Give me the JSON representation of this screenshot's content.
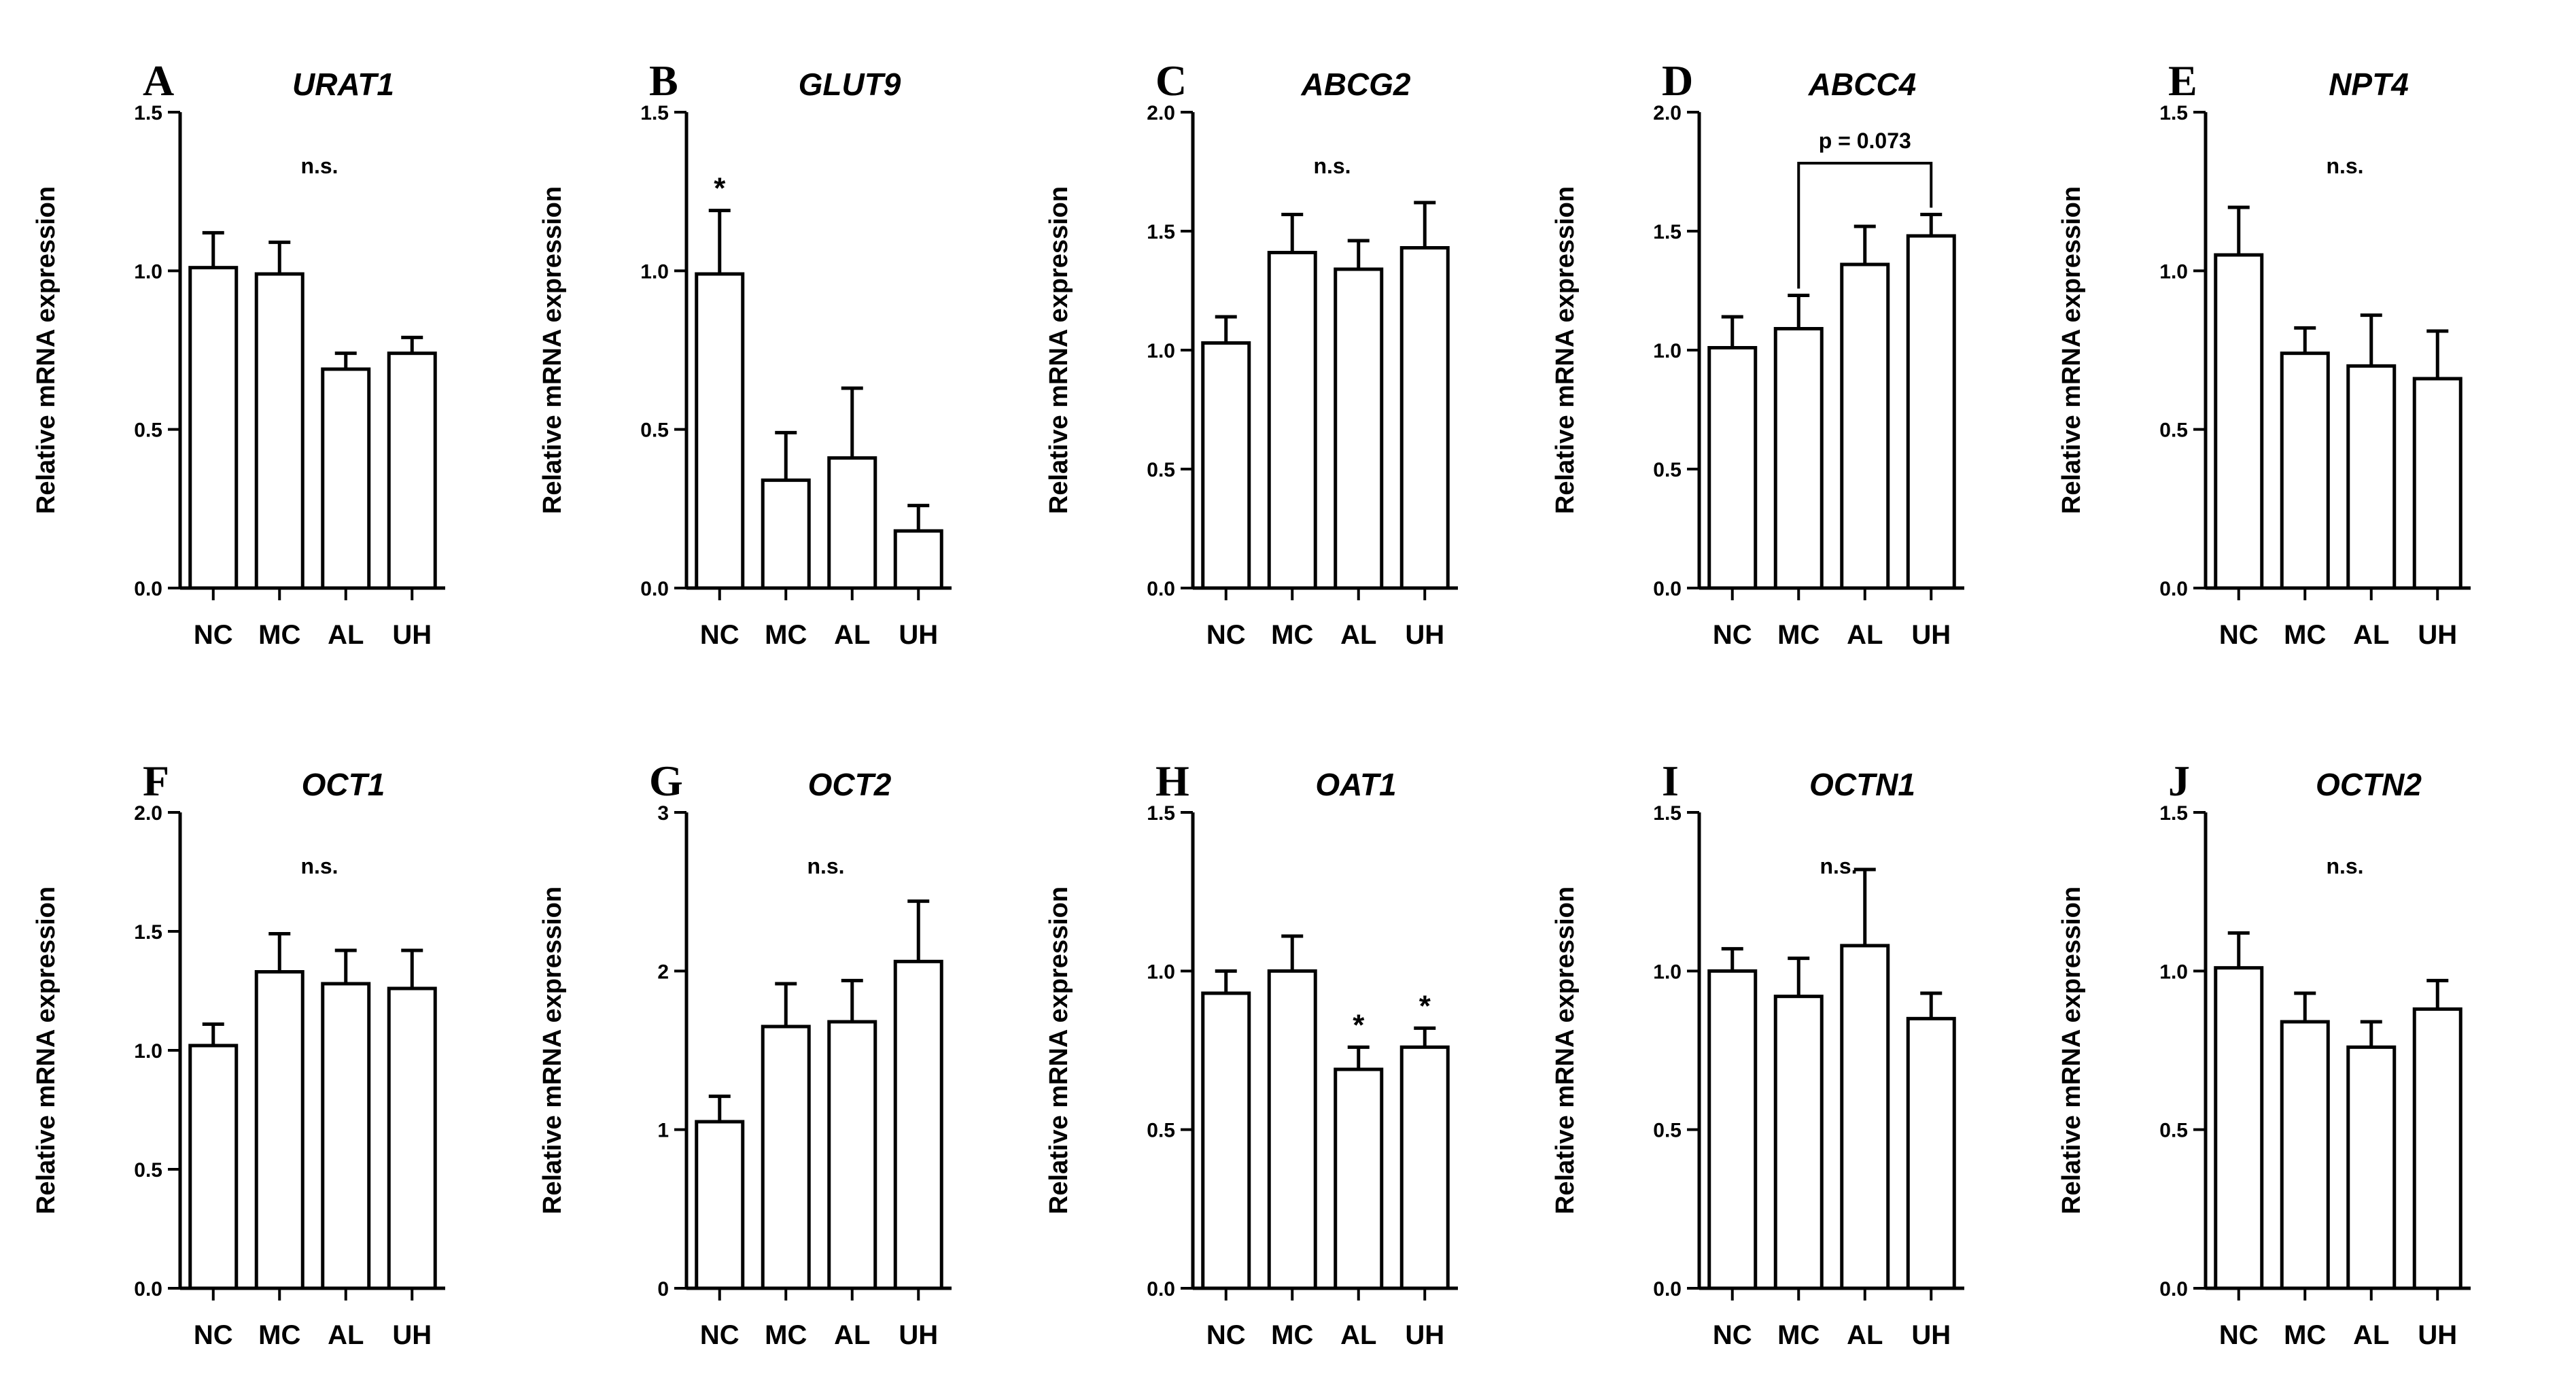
{
  "chart_data": [
    {
      "type": "bar",
      "panel": "A",
      "title": "URAT1",
      "ylabel": "Relative mRNA expression",
      "categories": [
        "NC",
        "MC",
        "AL",
        "UH"
      ],
      "values": [
        1.01,
        0.99,
        0.69,
        0.74
      ],
      "errors": [
        0.11,
        0.1,
        0.05,
        0.05
      ],
      "ylim": [
        0,
        1.5
      ],
      "yticks": [
        "0.0",
        "0.5",
        "1.0",
        "1.5"
      ],
      "annotation": "n.s.",
      "markers": [],
      "bracket": null
    },
    {
      "type": "bar",
      "panel": "B",
      "title": "GLUT9",
      "ylabel": "Relative mRNA expression",
      "categories": [
        "NC",
        "MC",
        "AL",
        "UH"
      ],
      "values": [
        0.99,
        0.34,
        0.41,
        0.18
      ],
      "errors": [
        0.2,
        0.15,
        0.22,
        0.08
      ],
      "ylim": [
        0,
        1.5
      ],
      "yticks": [
        "0.0",
        "0.5",
        "1.0",
        "1.5"
      ],
      "annotation": "",
      "markers": [
        {
          "index": 0,
          "text": "*"
        }
      ],
      "bracket": null
    },
    {
      "type": "bar",
      "panel": "C",
      "title": "ABCG2",
      "ylabel": "Relative mRNA expression",
      "categories": [
        "NC",
        "MC",
        "AL",
        "UH"
      ],
      "values": [
        1.03,
        1.41,
        1.34,
        1.43
      ],
      "errors": [
        0.11,
        0.16,
        0.12,
        0.19
      ],
      "ylim": [
        0,
        2.0
      ],
      "yticks": [
        "0.0",
        "0.5",
        "1.0",
        "1.5",
        "2.0"
      ],
      "annotation": "n.s.",
      "markers": [],
      "bracket": null
    },
    {
      "type": "bar",
      "panel": "D",
      "title": "ABCC4",
      "ylabel": "Relative mRNA expression",
      "categories": [
        "NC",
        "MC",
        "AL",
        "UH"
      ],
      "values": [
        1.01,
        1.09,
        1.36,
        1.48
      ],
      "errors": [
        0.13,
        0.14,
        0.16,
        0.09
      ],
      "ylim": [
        0,
        2.0
      ],
      "yticks": [
        "0.0",
        "0.5",
        "1.0",
        "1.5",
        "2.0"
      ],
      "annotation": "",
      "markers": [],
      "bracket": {
        "from": 1,
        "to": 3,
        "label": "p = 0.073"
      }
    },
    {
      "type": "bar",
      "panel": "E",
      "title": "NPT4",
      "ylabel": "Relative mRNA expression",
      "categories": [
        "NC",
        "MC",
        "AL",
        "UH"
      ],
      "values": [
        1.05,
        0.74,
        0.7,
        0.66
      ],
      "errors": [
        0.15,
        0.08,
        0.16,
        0.15
      ],
      "ylim": [
        0,
        1.5
      ],
      "yticks": [
        "0.0",
        "0.5",
        "1.0",
        "1.5"
      ],
      "annotation": "n.s.",
      "markers": [],
      "bracket": null
    },
    {
      "type": "bar",
      "panel": "F",
      "title": "OCT1",
      "ylabel": "Relative mRNA expression",
      "categories": [
        "NC",
        "MC",
        "AL",
        "UH"
      ],
      "values": [
        1.02,
        1.33,
        1.28,
        1.26
      ],
      "errors": [
        0.09,
        0.16,
        0.14,
        0.16
      ],
      "ylim": [
        0,
        2.0
      ],
      "yticks": [
        "0.0",
        "0.5",
        "1.0",
        "1.5",
        "2.0"
      ],
      "annotation": "n.s.",
      "markers": [],
      "bracket": null
    },
    {
      "type": "bar",
      "panel": "G",
      "title": "OCT2",
      "ylabel": "Relative mRNA expression",
      "categories": [
        "NC",
        "MC",
        "AL",
        "UH"
      ],
      "values": [
        1.05,
        1.65,
        1.68,
        2.06
      ],
      "errors": [
        0.16,
        0.27,
        0.26,
        0.38
      ],
      "ylim": [
        0,
        3
      ],
      "yticks": [
        "0",
        "1",
        "2",
        "3"
      ],
      "annotation": "n.s.",
      "markers": [],
      "bracket": null
    },
    {
      "type": "bar",
      "panel": "H",
      "title": "OAT1",
      "ylabel": "Relative mRNA expression",
      "categories": [
        "NC",
        "MC",
        "AL",
        "UH"
      ],
      "values": [
        0.93,
        1.0,
        0.69,
        0.76
      ],
      "errors": [
        0.07,
        0.11,
        0.07,
        0.06
      ],
      "ylim": [
        0,
        1.5
      ],
      "yticks": [
        "0.0",
        "0.5",
        "1.0",
        "1.5"
      ],
      "annotation": "",
      "markers": [
        {
          "index": 2,
          "text": "*"
        },
        {
          "index": 3,
          "text": "*"
        }
      ],
      "bracket": null
    },
    {
      "type": "bar",
      "panel": "I",
      "title": "OCTN1",
      "ylabel": "Relative mRNA expression",
      "categories": [
        "NC",
        "MC",
        "AL",
        "UH"
      ],
      "values": [
        1.0,
        0.92,
        1.08,
        0.85
      ],
      "errors": [
        0.07,
        0.12,
        0.24,
        0.08
      ],
      "ylim": [
        0,
        1.5
      ],
      "yticks": [
        "0.0",
        "0.5",
        "1.0",
        "1.5"
      ],
      "annotation": "n.s.",
      "markers": [],
      "bracket": null
    },
    {
      "type": "bar",
      "panel": "J",
      "title": "OCTN2",
      "ylabel": "Relative mRNA expression",
      "categories": [
        "NC",
        "MC",
        "AL",
        "UH"
      ],
      "values": [
        1.01,
        0.84,
        0.76,
        0.88
      ],
      "errors": [
        0.11,
        0.09,
        0.08,
        0.09
      ],
      "ylim": [
        0,
        1.5
      ],
      "yticks": [
        "0.0",
        "0.5",
        "1.0",
        "1.5"
      ],
      "annotation": "n.s.",
      "markers": [],
      "bracket": null
    }
  ]
}
